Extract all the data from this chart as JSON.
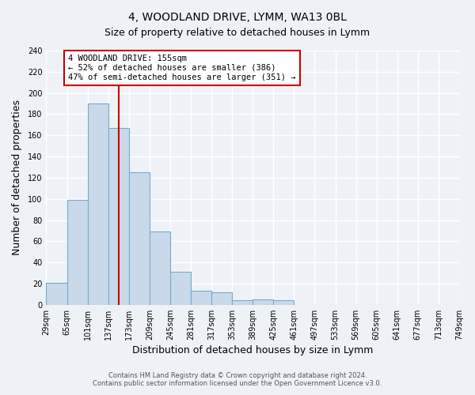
{
  "title": "4, WOODLAND DRIVE, LYMM, WA13 0BL",
  "subtitle": "Size of property relative to detached houses in Lymm",
  "xlabel": "Distribution of detached houses by size in Lymm",
  "ylabel": "Number of detached properties",
  "bin_edges": [
    29,
    65,
    101,
    137,
    173,
    209,
    245,
    281,
    317,
    353,
    389,
    425,
    461,
    497,
    533,
    569,
    605,
    641,
    677,
    713,
    749
  ],
  "bin_counts": [
    21,
    99,
    190,
    167,
    125,
    69,
    31,
    13,
    12,
    4,
    5,
    4,
    0,
    0,
    0,
    0,
    0,
    0,
    0,
    0
  ],
  "bar_facecolor": "#c9d9ea",
  "bar_edgecolor": "#7aaac8",
  "property_line_x": 155,
  "property_line_color": "#cc0000",
  "annotation_title": "4 WOODLAND DRIVE: 155sqm",
  "annotation_line1": "← 52% of detached houses are smaller (386)",
  "annotation_line2": "47% of semi-detached houses are larger (351) →",
  "annotation_box_edgecolor": "#cc0000",
  "annotation_box_facecolor": "white",
  "ylim": [
    0,
    240
  ],
  "yticks": [
    0,
    20,
    40,
    60,
    80,
    100,
    120,
    140,
    160,
    180,
    200,
    220,
    240
  ],
  "tick_labels": [
    "29sqm",
    "65sqm",
    "101sqm",
    "137sqm",
    "173sqm",
    "209sqm",
    "245sqm",
    "281sqm",
    "317sqm",
    "353sqm",
    "389sqm",
    "425sqm",
    "461sqm",
    "497sqm",
    "533sqm",
    "569sqm",
    "605sqm",
    "641sqm",
    "677sqm",
    "713sqm",
    "749sqm"
  ],
  "footer_line1": "Contains HM Land Registry data © Crown copyright and database right 2024.",
  "footer_line2": "Contains public sector information licensed under the Open Government Licence v3.0.",
  "background_color": "#eef2f7",
  "plot_bg_color": "#eef2f7",
  "grid_color": "#ffffff",
  "title_fontsize": 10,
  "subtitle_fontsize": 9,
  "axis_label_fontsize": 9,
  "tick_fontsize": 7,
  "annotation_fontsize": 7.5,
  "footer_fontsize": 6
}
